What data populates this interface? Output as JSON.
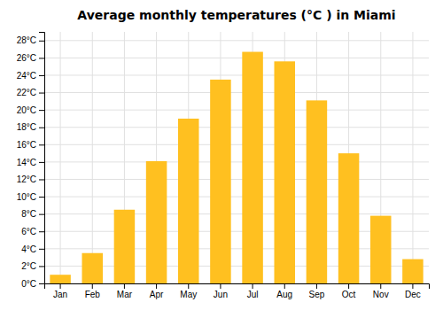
{
  "chart_data": {
    "type": "bar",
    "title": "Average monthly temperatures (°C ) in Miami",
    "categories": [
      "Jan",
      "Feb",
      "Mar",
      "Apr",
      "May",
      "Jun",
      "Jul",
      "Aug",
      "Sep",
      "Oct",
      "Nov",
      "Dec"
    ],
    "values": [
      1.0,
      3.5,
      8.5,
      14.1,
      19.0,
      23.5,
      26.7,
      25.6,
      21.1,
      15.0,
      7.8,
      2.8
    ],
    "color": "#FFC020",
    "ylim": [
      0,
      29
    ],
    "yticks": [
      {
        "value": 0,
        "label": "0°C"
      },
      {
        "value": 2,
        "label": "2°C"
      },
      {
        "value": 4,
        "label": "4°C"
      },
      {
        "value": 6,
        "label": "6°C"
      },
      {
        "value": 8,
        "label": "8°C"
      },
      {
        "value": 10,
        "label": "10°C"
      },
      {
        "value": 12,
        "label": "12°C"
      },
      {
        "value": 14,
        "label": "14°C"
      },
      {
        "value": 16,
        "label": "16°C"
      },
      {
        "value": 18,
        "label": "18°C"
      },
      {
        "value": 20,
        "label": "20°C"
      },
      {
        "value": 22,
        "label": "22°C"
      },
      {
        "value": 24,
        "label": "24°C"
      },
      {
        "value": 26,
        "label": "26°C"
      },
      {
        "value": 28,
        "label": "28°C"
      }
    ],
    "grid": true
  }
}
